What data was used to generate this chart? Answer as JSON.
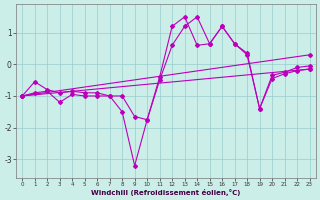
{
  "xlabel": "Windchill (Refroidissement éolien,°C)",
  "background_color": "#cceee8",
  "grid_color": "#99cccc",
  "line_color": "#bb00bb",
  "xlim": [
    -0.5,
    23.5
  ],
  "ylim": [
    -3.6,
    1.9
  ],
  "yticks": [
    -3,
    -2,
    -1,
    0,
    1
  ],
  "xticks": [
    0,
    1,
    2,
    3,
    4,
    5,
    6,
    7,
    8,
    9,
    10,
    11,
    12,
    13,
    14,
    15,
    16,
    17,
    18,
    19,
    20,
    21,
    22,
    23
  ],
  "line1_x": [
    0,
    1,
    2,
    3,
    4,
    5,
    6,
    7,
    8,
    9,
    10,
    11,
    12,
    13,
    14,
    15,
    16,
    17,
    18,
    19,
    20,
    21,
    22,
    23
  ],
  "line1_y": [
    -1.0,
    -0.55,
    -0.8,
    -0.9,
    -0.85,
    -0.9,
    -0.9,
    -1.0,
    -1.5,
    -3.2,
    -1.75,
    -0.5,
    0.6,
    1.2,
    1.5,
    0.65,
    1.2,
    0.65,
    0.3,
    -1.4,
    -0.45,
    -0.3,
    -0.2,
    -0.15
  ],
  "line2_x": [
    0,
    1,
    2,
    3,
    4,
    5,
    6,
    7,
    8,
    9,
    10,
    11,
    12,
    13,
    14,
    15,
    16,
    17,
    18,
    19,
    20,
    21,
    22,
    23
  ],
  "line2_y": [
    -1.0,
    -0.9,
    -0.85,
    -1.2,
    -0.95,
    -1.0,
    -1.0,
    -1.0,
    -1.0,
    -1.65,
    -1.75,
    -0.4,
    1.2,
    1.5,
    0.6,
    0.65,
    1.2,
    0.65,
    0.35,
    -1.4,
    -0.35,
    -0.25,
    -0.1,
    -0.05
  ],
  "line3_x": [
    0,
    23
  ],
  "line3_y": [
    -1.0,
    0.3
  ],
  "line4_x": [
    0,
    23
  ],
  "line4_y": [
    -1.0,
    -0.15
  ]
}
